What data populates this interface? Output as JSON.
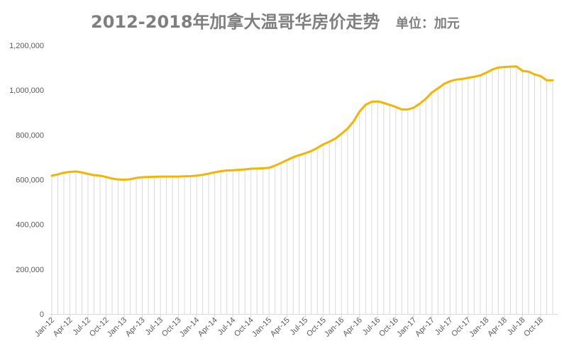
{
  "chart_data": {
    "type": "area",
    "title": "2012-2018年加拿大温哥华房价走势",
    "subtitle": "单位：加元",
    "xlabel": "",
    "ylabel": "",
    "ylim": [
      0,
      1200000
    ],
    "y_ticks": [
      "0",
      "200,000",
      "400,000",
      "600,000",
      "800,000",
      "1,000,000",
      "1,200,000"
    ],
    "x_tick_labels": [
      "Jan-12",
      "Apr-12",
      "Jul-12",
      "Oct-12",
      "Jan-13",
      "Apr-13",
      "Jul-13",
      "Oct-13",
      "Jan-14",
      "Apr-14",
      "Jul-14",
      "Oct-14",
      "Jan-15",
      "Apr-15",
      "Jul-15",
      "Oct-15",
      "Jan-16",
      "Apr-16",
      "Jul-16",
      "Oct-16",
      "Jan-17",
      "Apr-17",
      "Jul-17",
      "Oct-17",
      "Jan-18",
      "Apr-18",
      "Jul-18",
      "Oct-18"
    ],
    "x": [
      "Jan-12",
      "Feb-12",
      "Mar-12",
      "Apr-12",
      "May-12",
      "Jun-12",
      "Jul-12",
      "Aug-12",
      "Sep-12",
      "Oct-12",
      "Nov-12",
      "Dec-12",
      "Jan-13",
      "Feb-13",
      "Mar-13",
      "Apr-13",
      "May-13",
      "Jun-13",
      "Jul-13",
      "Aug-13",
      "Sep-13",
      "Oct-13",
      "Nov-13",
      "Dec-13",
      "Jan-14",
      "Feb-14",
      "Mar-14",
      "Apr-14",
      "May-14",
      "Jun-14",
      "Jul-14",
      "Aug-14",
      "Sep-14",
      "Oct-14",
      "Nov-14",
      "Dec-14",
      "Jan-15",
      "Feb-15",
      "Mar-15",
      "Apr-15",
      "May-15",
      "Jun-15",
      "Jul-15",
      "Aug-15",
      "Sep-15",
      "Oct-15",
      "Nov-15",
      "Dec-15",
      "Jan-16",
      "Feb-16",
      "Mar-16",
      "Apr-16",
      "May-16",
      "Jun-16",
      "Jul-16",
      "Aug-16",
      "Sep-16",
      "Oct-16",
      "Nov-16",
      "Dec-16",
      "Jan-17",
      "Feb-17",
      "Mar-17",
      "Apr-17",
      "May-17",
      "Jun-17",
      "Jul-17",
      "Aug-17",
      "Sep-17",
      "Oct-17",
      "Nov-17",
      "Dec-17",
      "Jan-18",
      "Feb-18",
      "Mar-18",
      "Apr-18",
      "May-18",
      "Jun-18",
      "Jul-18",
      "Aug-18",
      "Sep-18",
      "Oct-18",
      "Nov-18",
      "Dec-18"
    ],
    "series": [
      {
        "values": [
          618000,
          624000,
          631000,
          635000,
          637000,
          632000,
          626000,
          620000,
          618000,
          612000,
          605000,
          601000,
          600000,
          602000,
          608000,
          611000,
          612000,
          613000,
          614000,
          614000,
          614000,
          614000,
          615000,
          616000,
          618000,
          622000,
          627000,
          633000,
          638000,
          641000,
          642000,
          644000,
          646000,
          649000,
          650000,
          651000,
          653000,
          663000,
          675000,
          688000,
          700000,
          710000,
          718000,
          728000,
          742000,
          758000,
          770000,
          784000,
          805000,
          828000,
          860000,
          905000,
          935000,
          948000,
          950000,
          943000,
          934000,
          925000,
          914000,
          914000,
          922000,
          940000,
          962000,
          990000,
          1008000,
          1028000,
          1040000,
          1047000,
          1050000,
          1055000,
          1060000,
          1066000,
          1078000,
          1092000,
          1101000,
          1103000,
          1105000,
          1106000,
          1086000,
          1083000,
          1070000,
          1063000,
          1044000,
          1044000
        ]
      }
    ],
    "grid": false,
    "colors": {
      "line": "#f5b400",
      "drop_line": "#d9d9d9",
      "axis": "#d9d9d9",
      "text": "#595959",
      "title": "#7f7f7f"
    }
  }
}
